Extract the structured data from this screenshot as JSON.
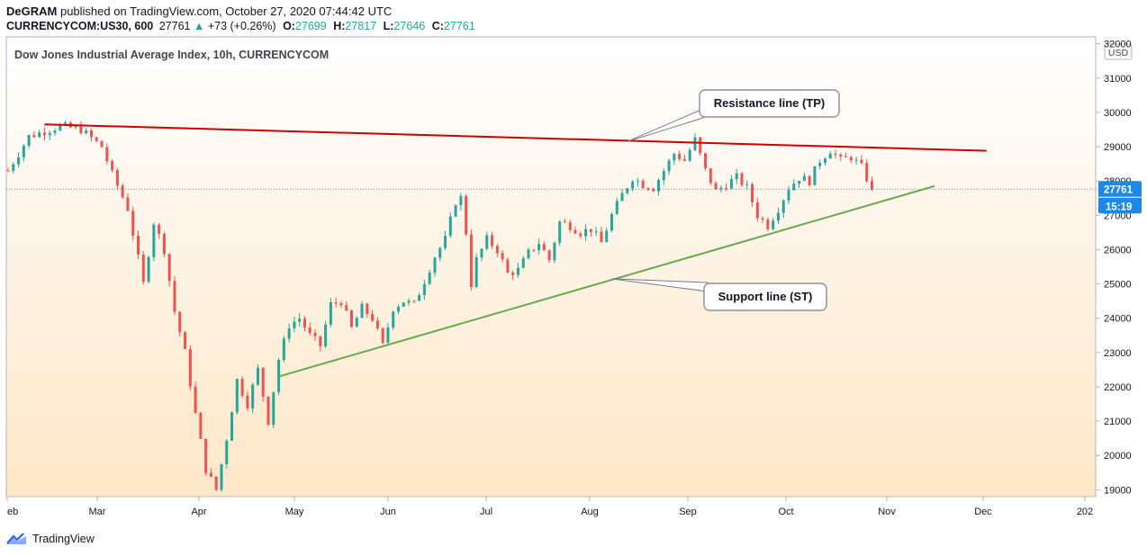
{
  "header": {
    "author": "DeGRAM",
    "published_text": "published on TradingView.com, October 27, 2020 07:44:42 UTC",
    "symbol": "CURRENCYCOM:US30, 600",
    "last": "27761",
    "arrow": "▲",
    "change": "+73 (+0.26%)",
    "o_label": "O:",
    "o_value": "27699",
    "h_label": "H:",
    "h_value": "27817",
    "l_label": "L:",
    "l_value": "27646",
    "c_label": "C:",
    "c_value": "27761"
  },
  "chart_data": {
    "type": "candlestick",
    "title": "Dow Jones Industrial Average Index, 10h, CURRENCYCOM",
    "currency": "USD",
    "y_ticks": [
      19000,
      20000,
      21000,
      22000,
      23000,
      24000,
      25000,
      26000,
      27000,
      28000,
      29000,
      30000,
      31000,
      32000
    ],
    "ylim": [
      18800,
      32200
    ],
    "x_ticks": [
      "eb",
      "Mar",
      "Apr",
      "May",
      "Jun",
      "Jul",
      "Aug",
      "Sep",
      "Oct",
      "Nov",
      "Dec",
      "202"
    ],
    "last_price": "27761",
    "countdown": "15:19",
    "price_path": [
      [
        0,
        28300
      ],
      [
        4,
        29300
      ],
      [
        10,
        29600
      ],
      [
        14,
        29500
      ],
      [
        18,
        29000
      ],
      [
        20,
        28200
      ],
      [
        23,
        27200
      ],
      [
        26,
        25000
      ],
      [
        28,
        26800
      ],
      [
        30,
        26000
      ],
      [
        32,
        24200
      ],
      [
        34,
        23000
      ],
      [
        36,
        21200
      ],
      [
        38,
        19600
      ],
      [
        40,
        19000
      ],
      [
        42,
        20500
      ],
      [
        44,
        22200
      ],
      [
        46,
        21500
      ],
      [
        48,
        22500
      ],
      [
        50,
        21000
      ],
      [
        52,
        22800
      ],
      [
        54,
        23800
      ],
      [
        56,
        24000
      ],
      [
        58,
        23500
      ],
      [
        60,
        23200
      ],
      [
        62,
        24400
      ],
      [
        64,
        24500
      ],
      [
        66,
        23700
      ],
      [
        68,
        24300
      ],
      [
        70,
        24000
      ],
      [
        72,
        23200
      ],
      [
        74,
        24300
      ],
      [
        76,
        24500
      ],
      [
        78,
        24400
      ],
      [
        80,
        25100
      ],
      [
        82,
        25800
      ],
      [
        84,
        26300
      ],
      [
        86,
        27400
      ],
      [
        87,
        27500
      ],
      [
        88,
        26500
      ],
      [
        89,
        25000
      ],
      [
        90,
        25700
      ],
      [
        92,
        26300
      ],
      [
        94,
        26000
      ],
      [
        96,
        25300
      ],
      [
        98,
        25400
      ],
      [
        100,
        25900
      ],
      [
        102,
        26200
      ],
      [
        104,
        25700
      ],
      [
        106,
        26800
      ],
      [
        108,
        26700
      ],
      [
        110,
        26500
      ],
      [
        112,
        26600
      ],
      [
        114,
        26200
      ],
      [
        116,
        27000
      ],
      [
        118,
        27600
      ],
      [
        120,
        28100
      ],
      [
        122,
        27900
      ],
      [
        124,
        27800
      ],
      [
        126,
        28300
      ],
      [
        128,
        28800
      ],
      [
        130,
        28600
      ],
      [
        132,
        29200
      ],
      [
        134,
        28300
      ],
      [
        136,
        27700
      ],
      [
        138,
        27900
      ],
      [
        140,
        28100
      ],
      [
        142,
        27800
      ],
      [
        144,
        27000
      ],
      [
        146,
        26700
      ],
      [
        148,
        27200
      ],
      [
        150,
        27800
      ],
      [
        152,
        28100
      ],
      [
        154,
        28000
      ],
      [
        156,
        28600
      ],
      [
        158,
        28900
      ],
      [
        160,
        28600
      ],
      [
        162,
        28700
      ],
      [
        164,
        28400
      ],
      [
        166,
        27761
      ]
    ],
    "trendlines": [
      {
        "name": "Resistance line (TP)",
        "color": "#cc0000",
        "p1": [
          7,
          29650
        ],
        "p2": [
          188,
          28880
        ]
      },
      {
        "name": "Support line (ST)",
        "color": "#6aa84f",
        "p1": [
          52,
          22300
        ],
        "p2": [
          178,
          27850
        ]
      }
    ],
    "annotations": [
      {
        "text": "Resistance line (TP)",
        "anchor_x": 119,
        "anchor_price": 29150
      },
      {
        "text": "Support line (ST)",
        "anchor_x": 116,
        "anchor_price": 25150
      }
    ]
  },
  "footer": {
    "brand": "TradingView"
  }
}
